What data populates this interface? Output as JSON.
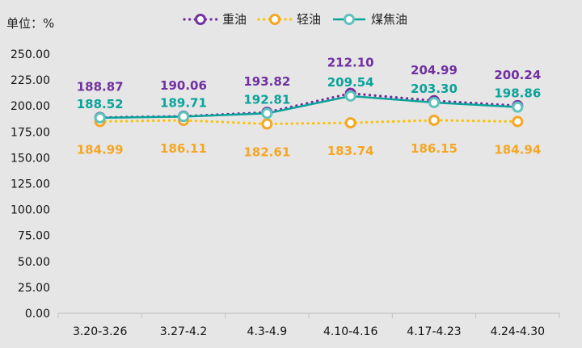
{
  "unit_label": "单位：%",
  "chart_data": {
    "type": "line",
    "title": "",
    "xlabel": "",
    "ylabel": "",
    "ylim": [
      0,
      250
    ],
    "yticks": [
      "0.00",
      "25.00",
      "50.00",
      "75.00",
      "100.00",
      "125.00",
      "150.00",
      "175.00",
      "200.00",
      "225.00",
      "250.00"
    ],
    "grid": false,
    "legend": "top-center",
    "categories": [
      "3.20-3.26",
      "3.27-4.2",
      "4.3-4.9",
      "4.10-4.16",
      "4.17-4.23",
      "4.24-4.30"
    ],
    "series": [
      {
        "name": "重油",
        "values": [
          188.87,
          190.06,
          193.82,
          212.1,
          204.99,
          200.24
        ],
        "labels": [
          "188.87",
          "190.06",
          "193.82",
          "212.10",
          "204.99",
          "200.24"
        ],
        "color": "#7030a0",
        "line_style": "dotted"
      },
      {
        "name": "轻油",
        "values": [
          184.99,
          186.11,
          182.61,
          183.74,
          186.15,
          184.94
        ],
        "labels": [
          "184.99",
          "186.11",
          "182.61",
          "183.74",
          "186.15",
          "184.94"
        ],
        "color": "#f5a623",
        "line_color": "#ffc000",
        "line_style": "dotted"
      },
      {
        "name": "煤焦油",
        "values": [
          188.52,
          189.71,
          192.81,
          209.54,
          203.3,
          198.86
        ],
        "labels": [
          "188.52",
          "189.71",
          "192.81",
          "209.54",
          "203.30",
          "198.86"
        ],
        "color": "#0aa39a",
        "marker_color": "#5fc2bd",
        "line_style": "solid"
      }
    ]
  }
}
